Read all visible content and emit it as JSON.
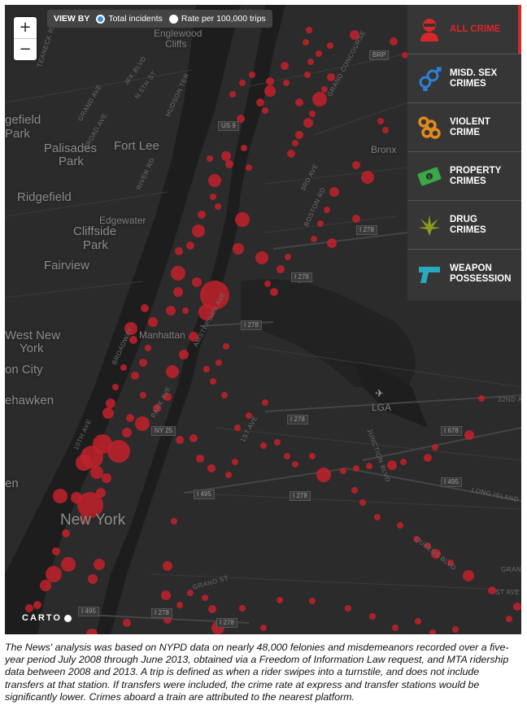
{
  "zoom": {
    "in_label": "+",
    "out_label": "−"
  },
  "view_by": {
    "label": "VIEW BY",
    "options": [
      {
        "label": "Total incidents",
        "selected": true
      },
      {
        "label": "Rate per 100,000 trips",
        "selected": false
      }
    ]
  },
  "crime_filters": [
    {
      "label_line1": "ALL CRIME",
      "label_line2": "",
      "icon": "masked-robber-icon",
      "active": true,
      "color": "#d8262a"
    },
    {
      "label_line1": "MISD. SEX",
      "label_line2": "CRIMES",
      "icon": "gender-symbols-icon",
      "active": false,
      "color": "#2f7fd4"
    },
    {
      "label_line1": "VIOLENT",
      "label_line2": "CRIME",
      "icon": "brass-knuckles-icon",
      "active": false,
      "color": "#e08a1e"
    },
    {
      "label_line1": "PROPERTY",
      "label_line2": "CRIMES",
      "icon": "money-bill-icon",
      "active": false,
      "color": "#3aa847"
    },
    {
      "label_line1": "DRUG",
      "label_line2": "CRIMES",
      "icon": "marijuana-leaf-icon",
      "active": false,
      "color": "#8a9a1e"
    },
    {
      "label_line1": "WEAPON",
      "label_line2": "POSSESSION",
      "icon": "handgun-icon",
      "active": false,
      "color": "#2aa8c0"
    }
  ],
  "places": [
    {
      "name": "Englewood",
      "key": "englewood"
    },
    {
      "name": "Cliffs",
      "key": "cliffs"
    },
    {
      "name": "gefield",
      "key": "gefield"
    },
    {
      "name": "Park",
      "key": "park1"
    },
    {
      "name": "Palisades",
      "key": "palisades"
    },
    {
      "name": "Park",
      "key": "park2"
    },
    {
      "name": "Fort Lee",
      "key": "fortlee"
    },
    {
      "name": "Ridgefield",
      "key": "ridgefield"
    },
    {
      "name": "Edgewater",
      "key": "edgewater"
    },
    {
      "name": "Cliffside",
      "key": "cliffside"
    },
    {
      "name": "Park",
      "key": "park3"
    },
    {
      "name": "Fairview",
      "key": "fairview"
    },
    {
      "name": "West New",
      "key": "westnew"
    },
    {
      "name": "York",
      "key": "york"
    },
    {
      "name": "Manhattan",
      "key": "manhattan"
    },
    {
      "name": "on City",
      "key": "oncity"
    },
    {
      "name": "ehawken",
      "key": "ehawken"
    },
    {
      "name": "en",
      "key": "en"
    },
    {
      "name": "New York",
      "key": "newyork"
    },
    {
      "name": "Bronx",
      "key": "bronx"
    },
    {
      "name": "LGA",
      "key": "lga"
    }
  ],
  "streets": [
    "TEANECK RD",
    "JFK BLVD",
    "N 5TH ST",
    "GRAND AVE",
    "BROAD AVE",
    "HUDSON TER",
    "RIVER RD",
    "BROADWAY",
    "AMSTERDAM AVE",
    "3RD AVE",
    "BOSTON RD",
    "10TH AVE",
    "PARK AVE",
    "1ST AVE",
    "JUNCTION BLVD",
    "QUEENS BLVD",
    "LONG ISLAND EXPY",
    "GRAND ST",
    "32ND AVE",
    "GRAND CONCOURSE",
    "ST AVE",
    "BRP",
    "GRAN"
  ],
  "highway_shields": [
    "US 9",
    "I 278",
    "I 278",
    "I 278",
    "I 278",
    "I 278",
    "I 495",
    "I 495",
    "I 495",
    "I 678",
    "I 278",
    "I 278",
    "NY 25"
  ],
  "map_attribution": "CARTO",
  "caption": "The News' analysis was based on NYPD data on nearly 48,000 felonies and misdemeanors recorded over a five-year period July 2008 through June 2013, obtained via a Freedom of Information Law request, and MTA ridership data between 2008 and 2013. A trip is defined as when a rider swipes into a turnstile, and does not include transfers at that station. If transfers were included, the crime rate at express and transfer stations would be significantly lower. Crimes aboard a train are attributed to the nearest platform.",
  "colors": {
    "map_bg": "#2b2b2b",
    "water": "#1c1c1c",
    "station_dot": "#c2212c",
    "accent": "#d8262a",
    "radio_selected": "#3a8ee6"
  }
}
